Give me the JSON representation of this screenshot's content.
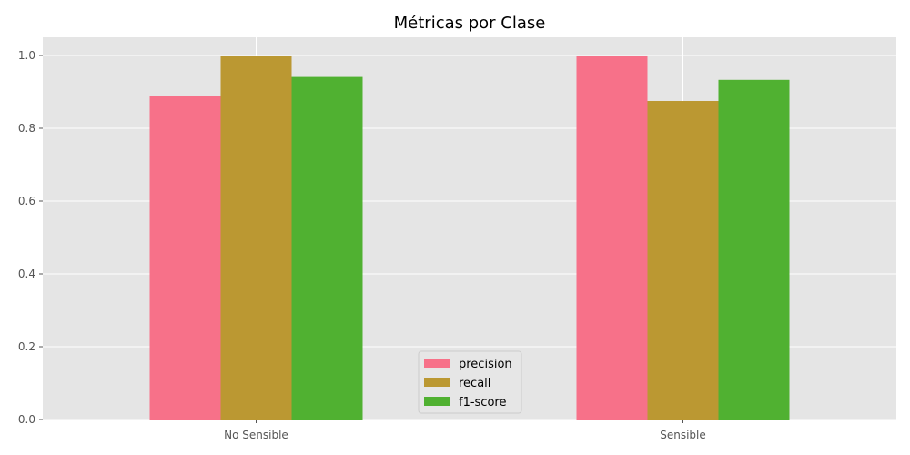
{
  "chart_data": {
    "type": "bar",
    "title": "Métricas por Clase",
    "xlabel": "",
    "ylabel": "",
    "categories": [
      "No Sensible",
      "Sensible"
    ],
    "series": [
      {
        "name": "precision",
        "values": [
          0.889,
          1.0
        ],
        "color": "#f77189"
      },
      {
        "name": "recall",
        "values": [
          1.0,
          0.875
        ],
        "color": "#bb9832"
      },
      {
        "name": "f1-score",
        "values": [
          0.941,
          0.933
        ],
        "color": "#50b131"
      }
    ],
    "ylim": [
      0,
      1.05
    ],
    "yticks": [
      0.0,
      0.2,
      0.4,
      0.6,
      0.8,
      1.0
    ],
    "ytick_labels": [
      "0.0",
      "0.2",
      "0.4",
      "0.6",
      "0.8",
      "1.0"
    ],
    "grid": true,
    "legend_position": "bottom-center",
    "background": "#e5e5e5"
  }
}
